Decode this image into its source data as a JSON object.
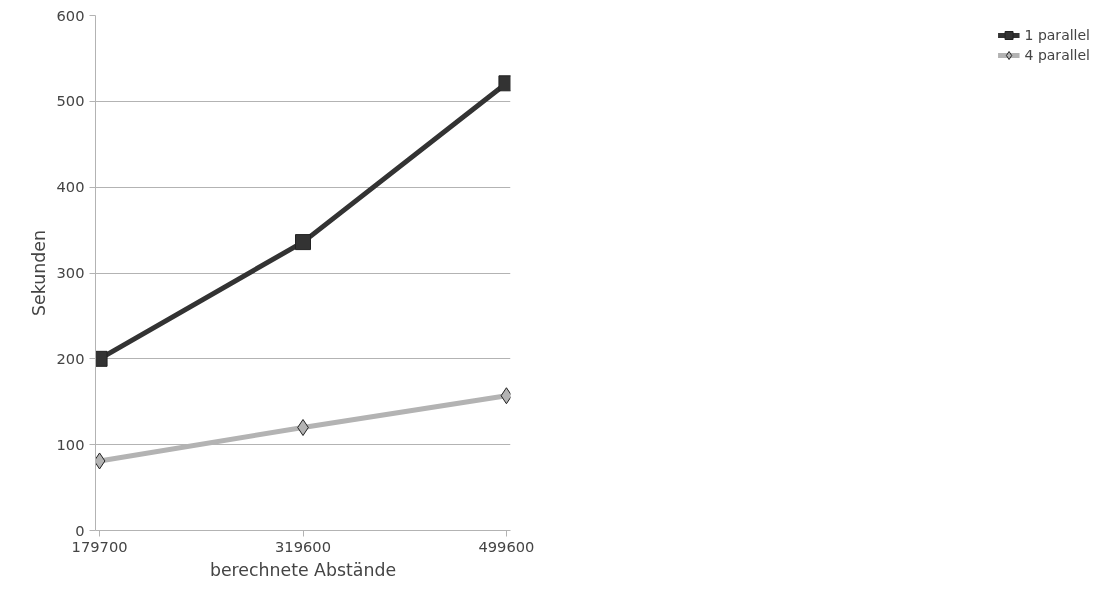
{
  "chart_data": {
    "type": "line",
    "xlabel": "berechnete Abstände",
    "ylabel": "Sekunden",
    "categories": [
      "179700",
      "319600",
      "499600"
    ],
    "series": [
      {
        "name": "1 parallel",
        "color": "#333333",
        "marker": "square",
        "values": [
          200,
          336,
          521
        ]
      },
      {
        "name": "4 parallel",
        "color": "#b3b3b3",
        "marker": "diamond",
        "values": [
          81,
          120,
          157
        ]
      }
    ],
    "ylim": [
      0,
      600
    ],
    "yticks": [
      0,
      100,
      200,
      300,
      400,
      500,
      600
    ],
    "grid": "y",
    "legend": "right"
  }
}
